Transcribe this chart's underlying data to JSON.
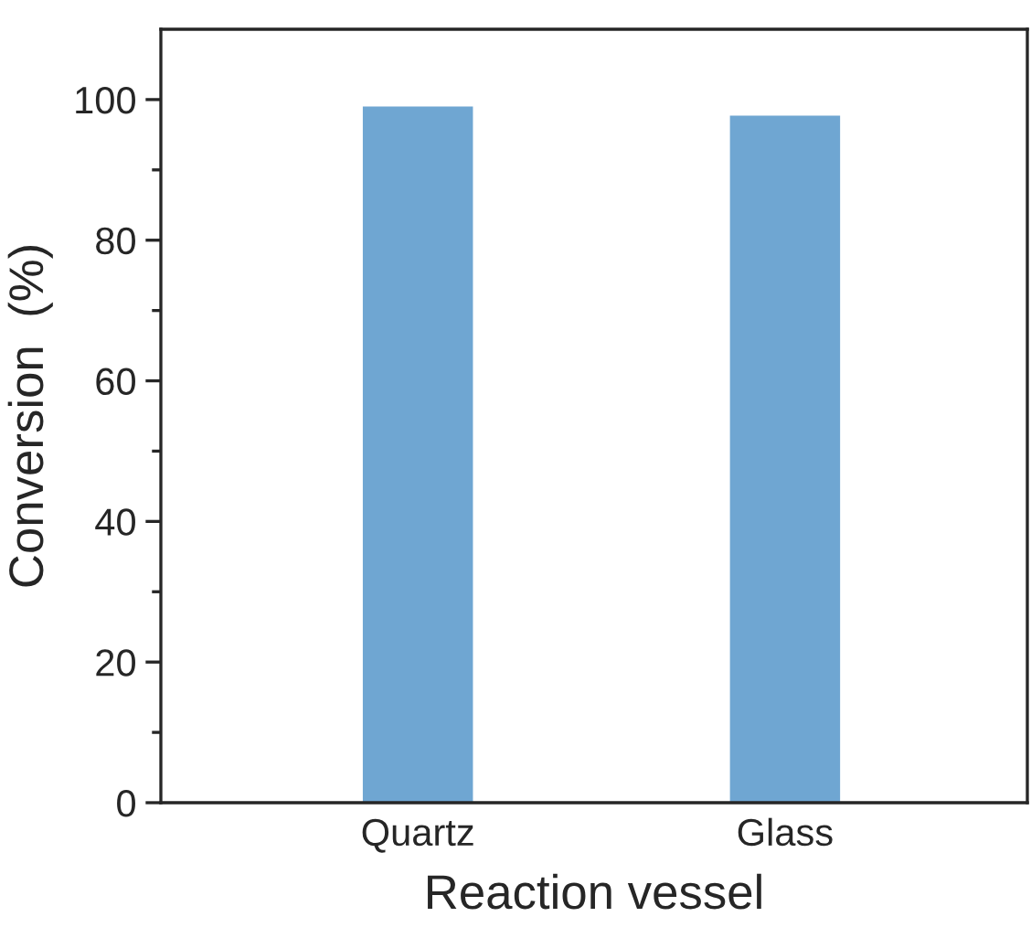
{
  "chart_data": {
    "type": "bar",
    "xlabel": "Reaction vessel",
    "ylabel": "Conversion  (%)",
    "categories": [
      "Quartz",
      "Glass"
    ],
    "values": [
      99.0,
      97.7
    ],
    "colors": [
      "#6fa6d2",
      "#6fa6d2"
    ],
    "ylim": [
      0,
      110
    ],
    "yticks": [
      0,
      {
        "value": 10,
        "label": null
      },
      20,
      {
        "value": 30,
        "label": null
      },
      40,
      {
        "value": 50,
        "label": null
      },
      60,
      {
        "value": 70,
        "label": null
      },
      80,
      {
        "value": 90,
        "label": null
      },
      100
    ],
    "grid": false,
    "legend": false
  }
}
